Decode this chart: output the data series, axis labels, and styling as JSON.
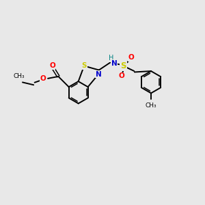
{
  "background_color": "#e8e8e8",
  "bond_color": "#000000",
  "S_color": "#cccc00",
  "N_color": "#0000cc",
  "O_color": "#ff0000",
  "H_color": "#008080",
  "figsize": [
    3.0,
    3.0
  ],
  "dpi": 100,
  "xlim": [
    0,
    10
  ],
  "ylim": [
    0,
    10
  ]
}
